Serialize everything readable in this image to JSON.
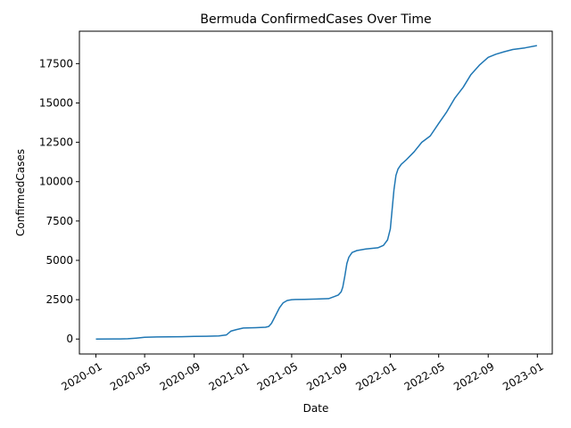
{
  "chart_data": {
    "type": "line",
    "title": "Bermuda  ConfirmedCases Over Time",
    "xlabel": "Date",
    "ylabel": "ConfirmedCases",
    "x_ticks": [
      "2020-01",
      "2020-05",
      "2020-09",
      "2021-01",
      "2021-05",
      "2021-09",
      "2022-01",
      "2022-05",
      "2022-09",
      "2023-01"
    ],
    "y_ticks": [
      0,
      2500,
      5000,
      7500,
      10000,
      12500,
      15000,
      17500
    ],
    "y_tick_labels": [
      "0",
      "2500",
      "5000",
      "7500",
      "10000",
      "12500",
      "15000",
      "17500"
    ],
    "xlim": [
      "2019-11-21",
      "2023-02-07"
    ],
    "ylim": [
      -950,
      19560
    ],
    "grid": false,
    "series": [
      {
        "color": "#1f77b4",
        "x": [
          "2020-01-01",
          "2020-03-01",
          "2020-03-20",
          "2020-04-10",
          "2020-05-01",
          "2020-06-01",
          "2020-08-01",
          "2020-09-01",
          "2020-10-01",
          "2020-11-01",
          "2020-11-20",
          "2020-12-01",
          "2020-12-15",
          "2021-01-01",
          "2021-02-01",
          "2021-02-25",
          "2021-03-05",
          "2021-03-12",
          "2021-03-20",
          "2021-04-01",
          "2021-04-10",
          "2021-04-20",
          "2021-05-01",
          "2021-05-10",
          "2021-06-01",
          "2021-07-01",
          "2021-08-01",
          "2021-08-15",
          "2021-08-25",
          "2021-09-01",
          "2021-09-05",
          "2021-09-10",
          "2021-09-15",
          "2021-09-20",
          "2021-09-28",
          "2021-10-10",
          "2021-11-01",
          "2021-12-01",
          "2021-12-15",
          "2021-12-25",
          "2022-01-01",
          "2022-01-05",
          "2022-01-10",
          "2022-01-15",
          "2022-01-20",
          "2022-01-28",
          "2022-02-10",
          "2022-03-01",
          "2022-03-20",
          "2022-04-10",
          "2022-05-01",
          "2022-05-20",
          "2022-06-10",
          "2022-07-01",
          "2022-07-20",
          "2022-08-10",
          "2022-09-01",
          "2022-09-20",
          "2022-10-10",
          "2022-11-01",
          "2022-12-01",
          "2022-12-31"
        ],
        "y": [
          0,
          5,
          20,
          60,
          110,
          130,
          150,
          170,
          180,
          200,
          260,
          500,
          600,
          700,
          720,
          750,
          800,
          1000,
          1400,
          2000,
          2300,
          2450,
          2500,
          2510,
          2520,
          2540,
          2570,
          2700,
          2800,
          3000,
          3300,
          4000,
          4800,
          5200,
          5500,
          5620,
          5720,
          5800,
          5950,
          6300,
          7000,
          8100,
          9500,
          10400,
          10800,
          11100,
          11400,
          11900,
          12500,
          12900,
          13700,
          14400,
          15300,
          16000,
          16800,
          17400,
          17900,
          18100,
          18250,
          18400,
          18500,
          18650
        ]
      }
    ]
  }
}
